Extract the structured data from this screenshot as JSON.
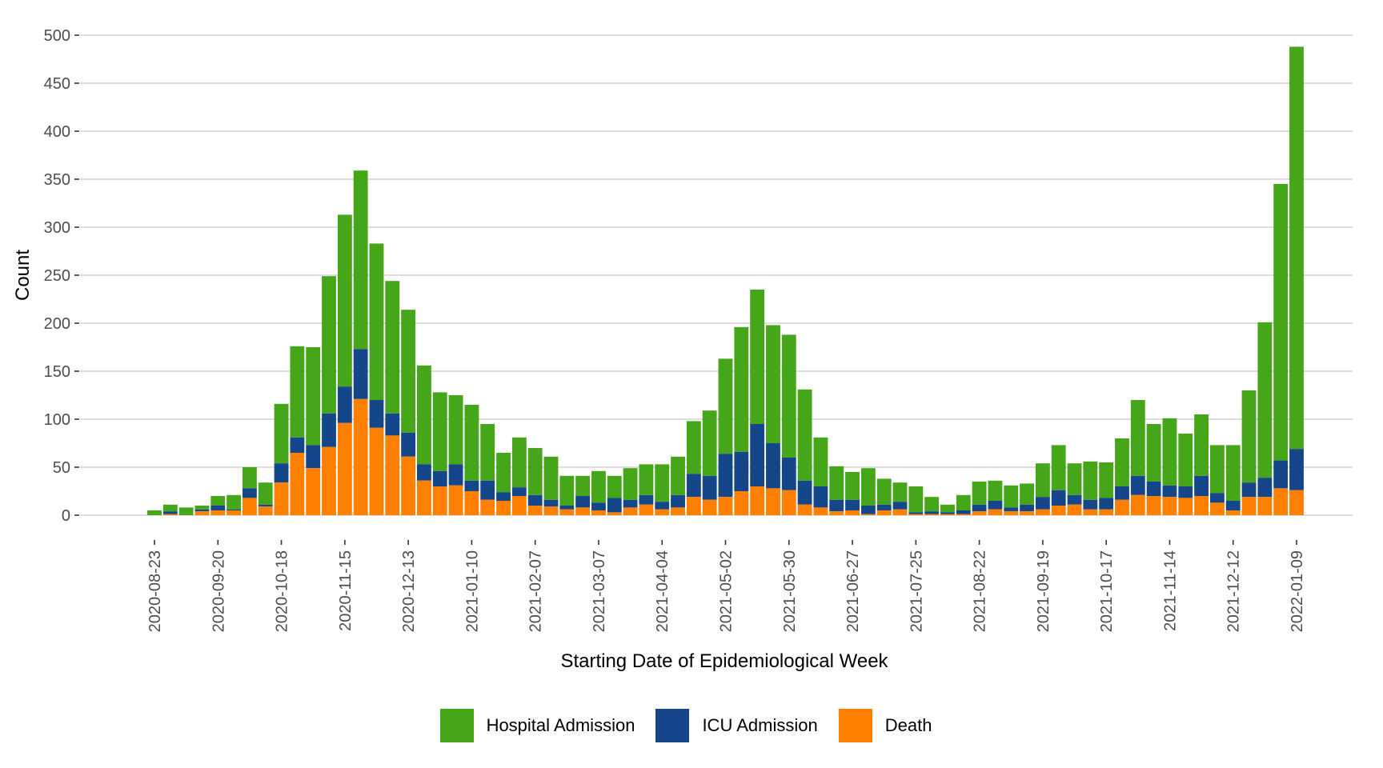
{
  "chart_data": {
    "type": "bar",
    "stacked": true,
    "title": "",
    "xlabel": "Starting Date of Epidemiological Week",
    "ylabel": "Count",
    "ylim": [
      0,
      500
    ],
    "yticks": [
      0,
      50,
      100,
      150,
      200,
      250,
      300,
      350,
      400,
      450,
      500
    ],
    "grid": true,
    "legend_position": "bottom",
    "x_start": "2020-08-23",
    "x_interval_days": 7,
    "xtick_labels": [
      "2020-08-23",
      "2020-09-20",
      "2020-10-18",
      "2020-11-15",
      "2020-12-13",
      "2021-01-10",
      "2021-02-07",
      "2021-03-07",
      "2021-04-04",
      "2021-05-02",
      "2021-05-30",
      "2021-06-27",
      "2021-07-25",
      "2021-08-22",
      "2021-09-19",
      "2021-10-17",
      "2021-11-14",
      "2021-12-12",
      "2022-01-09"
    ],
    "xtick_every_n_bars": 4,
    "series": [
      {
        "name": "Hospital Admission",
        "color": "#45a619",
        "note": "cumulative total per week (top of stack)",
        "values": [
          5,
          11,
          8,
          10,
          20,
          21,
          50,
          34,
          116,
          176,
          175,
          249,
          313,
          359,
          283,
          244,
          214,
          156,
          128,
          125,
          115,
          95,
          65,
          81,
          70,
          61,
          41,
          41,
          46,
          41,
          49,
          53,
          53,
          61,
          98,
          109,
          163,
          196,
          235,
          198,
          188,
          131,
          81,
          51,
          45,
          49,
          38,
          34,
          30,
          19,
          11,
          21,
          35,
          36,
          31,
          33,
          54,
          73,
          54,
          56,
          55,
          80,
          120,
          95,
          101,
          85,
          105,
          73,
          73,
          130,
          201,
          345,
          488
        ]
      },
      {
        "name": "ICU Admission",
        "color": "#15468a",
        "note": "cumulative ICU + Death per week",
        "values": [
          0,
          4,
          0,
          6,
          10,
          6,
          28,
          11,
          54,
          81,
          73,
          106,
          134,
          173,
          120,
          106,
          86,
          53,
          46,
          53,
          36,
          36,
          24,
          29,
          21,
          16,
          10,
          20,
          13,
          18,
          16,
          21,
          14,
          21,
          43,
          41,
          64,
          66,
          95,
          75,
          60,
          36,
          30,
          16,
          16,
          10,
          11,
          14,
          3,
          4,
          3,
          5,
          11,
          15,
          8,
          11,
          19,
          26,
          21,
          16,
          18,
          30,
          41,
          35,
          31,
          30,
          41,
          23,
          15,
          34,
          39,
          57,
          69
        ]
      },
      {
        "name": "Death",
        "color": "#ff8000",
        "values": [
          0,
          1,
          0,
          4,
          5,
          5,
          18,
          9,
          34,
          65,
          49,
          71,
          96,
          121,
          91,
          83,
          61,
          36,
          30,
          31,
          25,
          16,
          15,
          20,
          10,
          9,
          6,
          8,
          5,
          3,
          8,
          11,
          6,
          8,
          19,
          16,
          19,
          25,
          30,
          28,
          26,
          11,
          8,
          4,
          5,
          1,
          5,
          6,
          1,
          1,
          1,
          1,
          4,
          6,
          4,
          4,
          6,
          10,
          11,
          6,
          6,
          16,
          21,
          20,
          19,
          18,
          20,
          13,
          5,
          19,
          19,
          28,
          26
        ]
      }
    ]
  }
}
